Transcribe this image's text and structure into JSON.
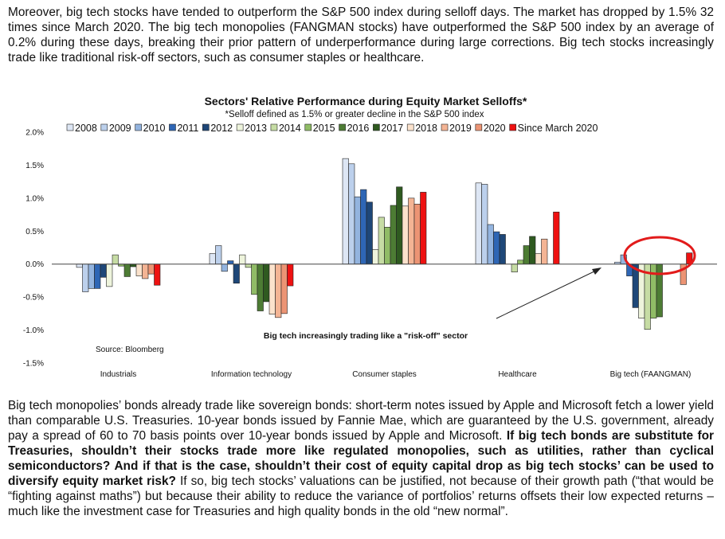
{
  "intro_paragraph": "Moreover, big tech stocks have tended to outperform the S&P 500 index during selloff days. The market has dropped by 1.5% 32 times since March 2020. The big tech monopolies (FANGMAN stocks) have outperformed the S&P 500 index by an average of 0.2% during these days, breaking their prior pattern of underperformance during large corrections. Big tech stocks increasingly trade like traditional risk-off sectors, such as consumer staples or healthcare.",
  "closing_paragraph": {
    "part1": "Big tech monopolies’ bonds already trade like sovereign bonds: short-term notes issued by Apple and Microsoft fetch a lower yield than comparable U.S. Treasuries. 10-year bonds issued by Fannie Mae, which are guaranteed by the U.S. government, already pay a spread of 60 to 70 basis points over 10-year bonds issued by Apple and Microsoft. ",
    "bold": "If big tech bonds are substitute for Treasuries, shouldn’t their stocks trade more like regulated monopolies, such as utilities, rather than cyclical semiconductors? And if that is the case,  shouldn’t their cost of equity capital drop as big tech stocks’ can be used to diversify equity market risk?",
    "part2": " If so, big tech stocks’ valuations can be justified, not because of their growth path (“that would be “fighting against maths”) but because their ability to reduce the variance of portfolios’ returns offsets their low expected returns – much like the investment case for Treasuries and high quality bonds in the old “new normal”."
  },
  "chart_data": {
    "type": "bar",
    "title": "Sectors' Relative Performance during Equity Market Selloffs*",
    "subtitle": "*Selloff defined as 1.5% or greater decline in the S&P 500  index",
    "source": "Source: Bloomberg",
    "annotation": "Big tech increasingly trading like a \"risk-off\" sector",
    "ylim": [
      -1.5,
      2.0
    ],
    "yticks": [
      2.0,
      1.5,
      1.0,
      0.5,
      0.0,
      -0.5,
      -1.0,
      -1.5
    ],
    "ytick_labels": [
      "2.0%",
      "1.5%",
      "1.0%",
      "0.5%",
      "0.0%",
      "-0.5%",
      "-1.0%",
      "-1.5%"
    ],
    "legend_position": "top",
    "categories": [
      "Industrials",
      "Information technology",
      "Consumer staples",
      "Healthcare",
      "Big tech (FAANGMAN)"
    ],
    "series": [
      {
        "name": "2008",
        "color": "#dde6f4",
        "values": [
          -0.05,
          0.16,
          1.6,
          1.23,
          0.0
        ]
      },
      {
        "name": "2009",
        "color": "#bcd0ec",
        "values": [
          -0.42,
          0.28,
          1.52,
          1.21,
          0.03
        ]
      },
      {
        "name": "2010",
        "color": "#93b4df",
        "values": [
          -0.37,
          -0.11,
          1.02,
          0.6,
          0.14
        ]
      },
      {
        "name": "2011",
        "color": "#2e66b5",
        "values": [
          -0.37,
          0.05,
          1.13,
          0.49,
          -0.18
        ]
      },
      {
        "name": "2012",
        "color": "#1e4778",
        "values": [
          -0.2,
          -0.29,
          0.94,
          0.45,
          -0.66
        ]
      },
      {
        "name": "2013",
        "color": "#eef4dc",
        "values": [
          -0.34,
          0.14,
          0.22,
          0.0,
          -0.82
        ]
      },
      {
        "name": "2014",
        "color": "#c6dca4",
        "values": [
          0.14,
          -0.05,
          0.71,
          -0.12,
          -0.99
        ]
      },
      {
        "name": "2015",
        "color": "#90bc66",
        "values": [
          -0.03,
          -0.46,
          0.56,
          0.06,
          -0.82
        ]
      },
      {
        "name": "2016",
        "color": "#4d7c34",
        "values": [
          -0.19,
          -0.71,
          0.89,
          0.28,
          -0.8
        ]
      },
      {
        "name": "2017",
        "color": "#2f5a20",
        "values": [
          -0.04,
          -0.57,
          1.17,
          0.42,
          0.0
        ]
      },
      {
        "name": "2018",
        "color": "#fbe2cc",
        "values": [
          -0.18,
          -0.76,
          0.88,
          0.16,
          0.0
        ]
      },
      {
        "name": "2019",
        "color": "#f4b494",
        "values": [
          -0.22,
          -0.81,
          1.0,
          0.38,
          0.0
        ]
      },
      {
        "name": "2020",
        "color": "#ec9474",
        "values": [
          -0.15,
          -0.75,
          0.91,
          0.0,
          -0.31
        ]
      },
      {
        "name": "Since March 2020",
        "color": "#ee1111",
        "values": [
          -0.32,
          -0.33,
          1.09,
          0.79,
          0.17
        ]
      }
    ]
  }
}
